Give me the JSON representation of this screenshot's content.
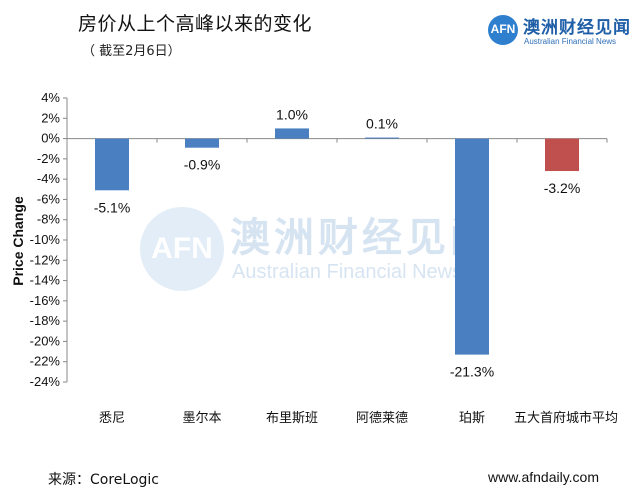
{
  "header": {
    "title": "房价从上个高峰以来的变化",
    "subtitle": "（ 截至2月6日）"
  },
  "logo": {
    "mark": "AFN",
    "name_cn": "澳洲财经见闻",
    "name_en": "Australian Financial News"
  },
  "watermark": {
    "mark": "AFN",
    "name_cn": "澳洲财经见闻",
    "name_en": "Australian Financial News"
  },
  "footer": {
    "source": "来源：CoreLogic",
    "site": "www.afndaily.com"
  },
  "chart_data": {
    "type": "bar",
    "title": "房价从上个高峰以来的变化",
    "subtitle": "（ 截至2月6日）",
    "xlabel": "",
    "ylabel": "Price Change",
    "categories": [
      "悉尼",
      "墨尔本",
      "布里斯班",
      "阿德莱德",
      "珀斯",
      "五大首府城市平均"
    ],
    "values": [
      -5.1,
      -0.9,
      1.0,
      0.1,
      -21.3,
      -3.2
    ],
    "value_labels": [
      "-5.1%",
      "-0.9%",
      "1.0%",
      "0.1%",
      "-21.3%",
      "-3.2%"
    ],
    "bar_colors": [
      "#4a7fc1",
      "#4a7fc1",
      "#4a7fc1",
      "#4a7fc1",
      "#4a7fc1",
      "#c0504d"
    ],
    "ylim": [
      -24,
      4
    ],
    "yticks": [
      4,
      2,
      0,
      -2,
      -4,
      -6,
      -8,
      -10,
      -12,
      -14,
      -16,
      -18,
      -20,
      -22,
      -24
    ],
    "ytick_labels": [
      "4%",
      "2%",
      "0%",
      "-2%",
      "-4%",
      "-6%",
      "-8%",
      "-10%",
      "-12%",
      "-14%",
      "-16%",
      "-18%",
      "-20%",
      "-22%",
      "-24%"
    ],
    "grid": false,
    "legend": "none"
  }
}
